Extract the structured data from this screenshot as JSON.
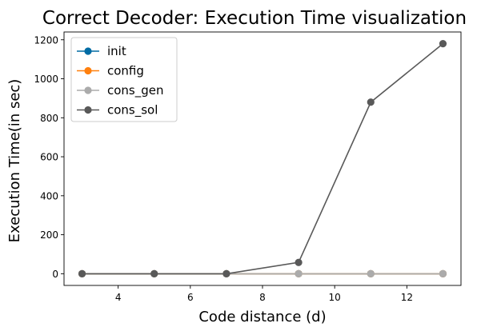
{
  "chart_data": {
    "type": "line",
    "title": "Correct Decoder: Execution Time visualization",
    "xlabel": "Code distance (d)",
    "ylabel": "Execution Time(in sec)",
    "x": [
      3,
      5,
      7,
      9,
      11,
      13
    ],
    "xlim": [
      2.5,
      13.5
    ],
    "ylim": [
      -60,
      1240
    ],
    "xticks": [
      4,
      6,
      8,
      10,
      12
    ],
    "yticks": [
      0,
      200,
      400,
      600,
      800,
      1000,
      1200
    ],
    "xtick_labels": [
      "4",
      "6",
      "8",
      "10",
      "12"
    ],
    "ytick_labels": [
      "0",
      "200",
      "400",
      "600",
      "800",
      "1000",
      "1200"
    ],
    "grid": false,
    "legend_position": "top-left",
    "series": [
      {
        "name": "init",
        "color": "#006ba4",
        "marker": "circle",
        "values": [
          0,
          0,
          0,
          0,
          0,
          0
        ]
      },
      {
        "name": "config",
        "color": "#ff800e",
        "marker": "circle",
        "values": [
          0,
          0,
          0,
          0,
          0,
          0
        ]
      },
      {
        "name": "cons_gen",
        "color": "#ababab",
        "marker": "circle",
        "values": [
          0,
          0,
          0,
          0,
          0,
          0
        ]
      },
      {
        "name": "cons_sol",
        "color": "#595959",
        "marker": "circle",
        "values": [
          0,
          0,
          0,
          58,
          880,
          1180
        ]
      }
    ]
  }
}
